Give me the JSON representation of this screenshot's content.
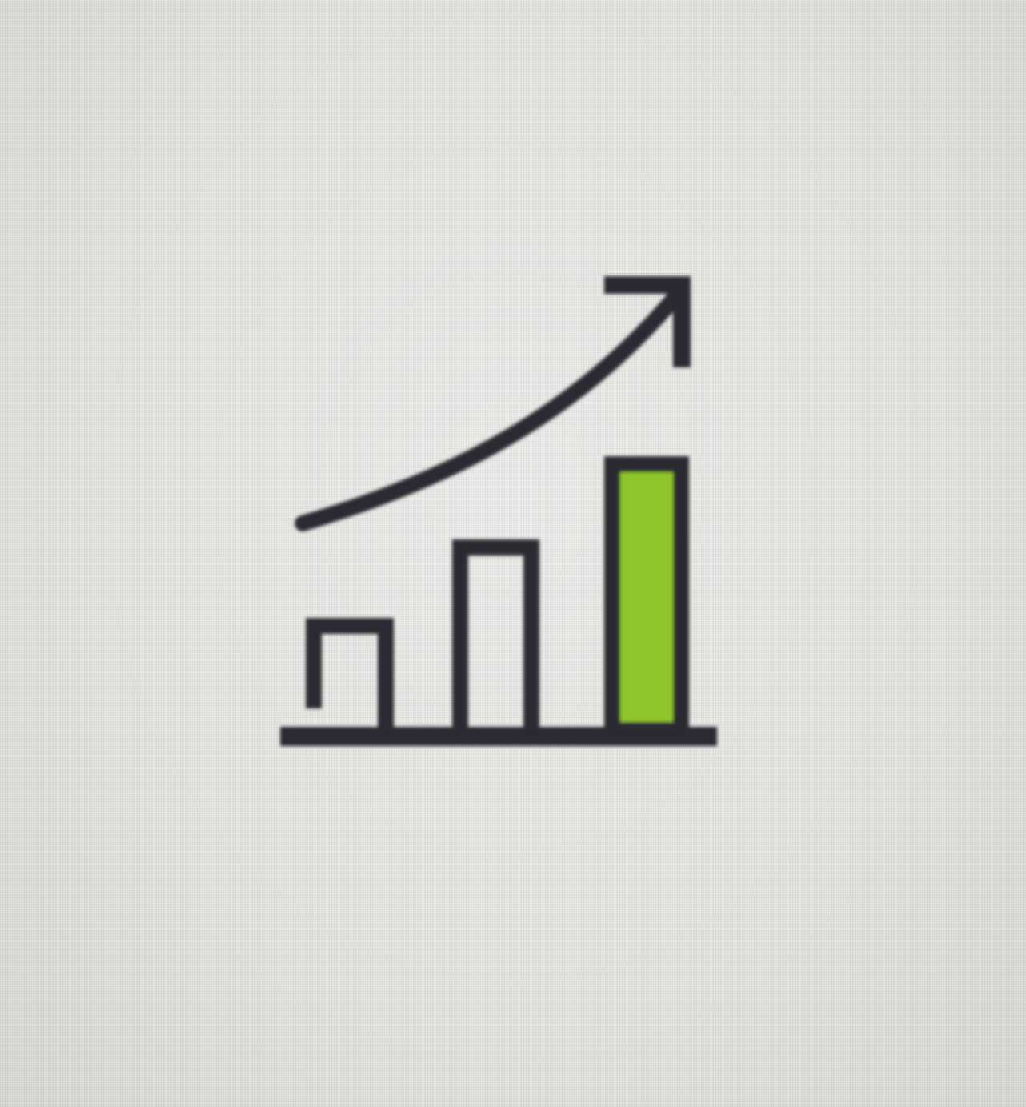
{
  "icon": {
    "name": "growth-chart-icon",
    "stroke_color": "#2b2a30",
    "highlight_color": "#8fc42a"
  }
}
